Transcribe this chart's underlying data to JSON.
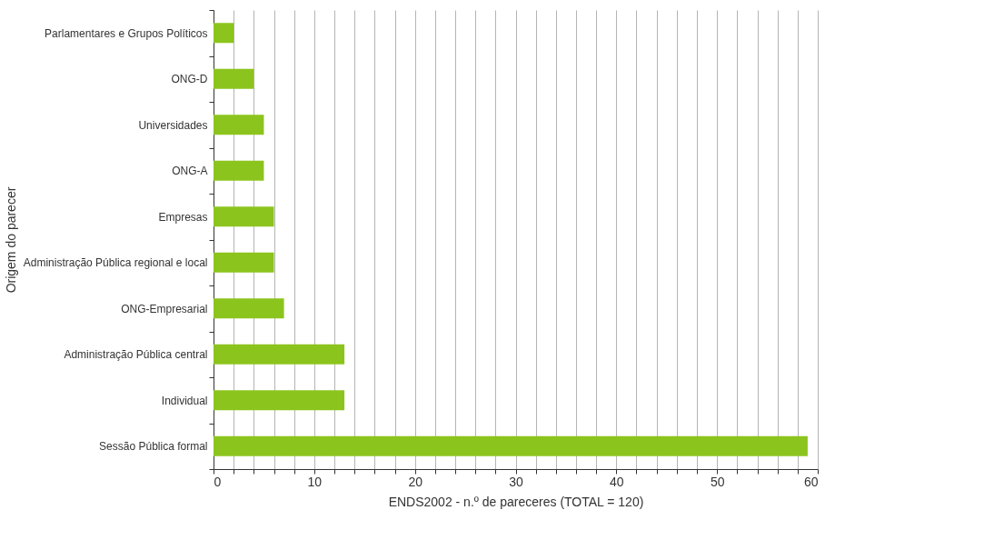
{
  "chart_data": {
    "type": "bar",
    "orientation": "horizontal",
    "xlabel": "ENDS2002 - n.º de pareceres (TOTAL  = 120)",
    "ylabel": "Origem do parecer",
    "categories": [
      "Parlamentares e Grupos Políticos",
      "ONG-D",
      "Universidades",
      "ONG-A",
      "Empresas",
      "Administração Pública regional e local",
      "ONG-Empresarial",
      "Administração Pública central",
      "Individual",
      "Sessão Pública formal"
    ],
    "values": [
      2,
      4,
      5,
      5,
      6,
      6,
      7,
      13,
      13,
      59
    ],
    "color": "#8cc41e",
    "xlim": [
      0,
      60
    ],
    "xticks": [
      0,
      {
        "value": 2,
        "label": null
      },
      {
        "value": 4,
        "label": null
      },
      {
        "value": 6,
        "label": null
      },
      {
        "value": 8,
        "label": null
      },
      10,
      {
        "value": 12,
        "label": null
      },
      {
        "value": 14,
        "label": null
      },
      {
        "value": 16,
        "label": null
      },
      {
        "value": 18,
        "label": null
      },
      20,
      {
        "value": 22,
        "label": null
      },
      {
        "value": 24,
        "label": null
      },
      {
        "value": 26,
        "label": null
      },
      {
        "value": 28,
        "label": null
      },
      30,
      {
        "value": 32,
        "label": null
      },
      {
        "value": 34,
        "label": null
      },
      {
        "value": 36,
        "label": null
      },
      {
        "value": 38,
        "label": null
      },
      40,
      {
        "value": 42,
        "label": null
      },
      {
        "value": 44,
        "label": null
      },
      {
        "value": 46,
        "label": null
      },
      {
        "value": 48,
        "label": null
      },
      50,
      {
        "value": 52,
        "label": null
      },
      {
        "value": 54,
        "label": null
      },
      {
        "value": 56,
        "label": null
      },
      {
        "value": 58,
        "label": null
      },
      60
    ],
    "grid": "x"
  }
}
